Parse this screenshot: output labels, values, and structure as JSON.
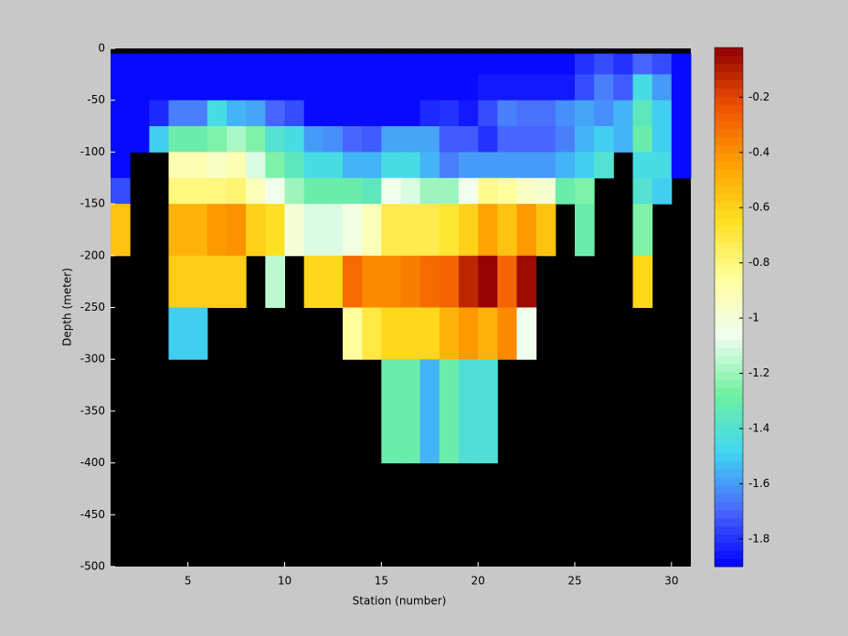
{
  "chart_data": {
    "type": "heatmap",
    "xlabel": "Station (number)",
    "ylabel": "Depth (meter)",
    "x_edges": [
      1,
      2,
      3,
      4,
      5,
      6,
      7,
      8,
      9,
      10,
      11,
      12,
      13,
      14,
      15,
      16,
      17,
      18,
      19,
      20,
      21,
      22,
      23,
      24,
      25,
      26,
      27,
      28,
      29,
      30,
      31
    ],
    "y_edges": [
      0,
      -5,
      -25,
      -50,
      -75,
      -100,
      -125,
      -150,
      -200,
      -250,
      -300,
      -400,
      -500
    ],
    "xlim": [
      1,
      31
    ],
    "ylim": [
      -500,
      0
    ],
    "xticks": [
      5,
      10,
      15,
      20,
      25,
      30
    ],
    "yticks": [
      0,
      -50,
      -100,
      -150,
      -200,
      -250,
      -300,
      -350,
      -400,
      -450,
      -500
    ],
    "background": "#000000",
    "clim": [
      -1.9,
      -0.02
    ],
    "cticks": [
      -1.8,
      -1.6,
      -1.4,
      -1.2,
      -1,
      -0.8,
      -0.6,
      -0.4,
      -0.2
    ],
    "colormap": [
      "#0000ff",
      "#4a6aff",
      "#40d8f0",
      "#70f0a0",
      "#f0fff0",
      "#ffffa0",
      "#ffe020",
      "#ffa000",
      "#f05000",
      "#900000"
    ],
    "colorbar_steps": 64,
    "values": [
      [
        null,
        null,
        null,
        null,
        null,
        null,
        null,
        null,
        null,
        null,
        null,
        null,
        null,
        null,
        null,
        null,
        null,
        null,
        null,
        null,
        null,
        null,
        null,
        null,
        null,
        null,
        null,
        null,
        null,
        null
      ],
      [
        -1.88,
        -1.88,
        -1.88,
        -1.88,
        -1.88,
        -1.88,
        -1.88,
        -1.88,
        -1.88,
        -1.88,
        -1.88,
        -1.88,
        -1.88,
        -1.88,
        -1.88,
        -1.88,
        -1.88,
        -1.88,
        -1.88,
        -1.88,
        -1.88,
        -1.88,
        -1.88,
        -1.88,
        -1.8,
        -1.75,
        -1.8,
        -1.7,
        -1.75,
        -1.88
      ],
      [
        -1.88,
        -1.88,
        -1.88,
        -1.88,
        -1.88,
        -1.88,
        -1.88,
        -1.88,
        -1.88,
        -1.88,
        -1.88,
        -1.88,
        -1.88,
        -1.88,
        -1.88,
        -1.88,
        -1.88,
        -1.88,
        -1.88,
        -1.85,
        -1.85,
        -1.85,
        -1.85,
        -1.85,
        -1.75,
        -1.65,
        -1.72,
        -1.45,
        -1.6,
        -1.88
      ],
      [
        -1.88,
        -1.88,
        -1.82,
        -1.65,
        -1.65,
        -1.45,
        -1.55,
        -1.58,
        -1.7,
        -1.75,
        -1.88,
        -1.88,
        -1.88,
        -1.88,
        -1.88,
        -1.88,
        -1.82,
        -1.8,
        -1.85,
        -1.75,
        -1.65,
        -1.68,
        -1.68,
        -1.62,
        -1.58,
        -1.62,
        -1.55,
        -1.35,
        -1.5,
        -1.88
      ],
      [
        -1.88,
        -1.88,
        -1.5,
        -1.3,
        -1.3,
        -1.25,
        -1.18,
        -1.25,
        -1.4,
        -1.45,
        -1.6,
        -1.62,
        -1.7,
        -1.72,
        -1.58,
        -1.58,
        -1.58,
        -1.72,
        -1.72,
        -1.8,
        -1.7,
        -1.7,
        -1.7,
        -1.65,
        -1.55,
        -1.5,
        -1.55,
        -1.3,
        -1.5,
        -1.88
      ],
      [
        -1.88,
        null,
        null,
        -0.9,
        -0.9,
        -0.95,
        -0.9,
        -1.1,
        -1.25,
        -1.35,
        -1.45,
        -1.45,
        -1.55,
        -1.55,
        -1.45,
        -1.45,
        -1.55,
        -1.65,
        -1.6,
        -1.6,
        -1.6,
        -1.6,
        -1.6,
        -1.55,
        -1.5,
        -1.4,
        null,
        -1.45,
        -1.45,
        -1.88
      ],
      [
        -1.75,
        null,
        null,
        -0.8,
        -0.8,
        -0.8,
        -0.78,
        -0.92,
        -1.05,
        -1.2,
        -1.3,
        -1.3,
        -1.3,
        -1.35,
        -1.05,
        -1.1,
        -1.2,
        -1.2,
        -1.05,
        -0.82,
        -0.85,
        -0.95,
        -0.98,
        -1.3,
        -1.25,
        null,
        null,
        -1.4,
        -1.5,
        null
      ],
      [
        -0.55,
        null,
        null,
        -0.5,
        -0.5,
        -0.42,
        -0.4,
        -0.6,
        -0.65,
        -1,
        -1.1,
        -1.1,
        -1.02,
        -0.92,
        -0.72,
        -0.72,
        -0.72,
        -0.68,
        -0.6,
        -0.45,
        -0.55,
        -0.42,
        -0.55,
        null,
        -1.3,
        null,
        null,
        -1.25,
        null,
        null
      ],
      [
        null,
        null,
        null,
        -0.58,
        -0.58,
        -0.58,
        -0.58,
        null,
        -1.15,
        null,
        -0.62,
        -0.62,
        -0.3,
        -0.38,
        -0.38,
        -0.35,
        -0.3,
        -0.28,
        -0.12,
        -0.03,
        -0.28,
        -0.05,
        null,
        null,
        null,
        null,
        null,
        -0.62,
        null,
        null
      ],
      [
        null,
        null,
        null,
        -1.5,
        -1.5,
        null,
        null,
        null,
        null,
        null,
        null,
        null,
        -0.85,
        -0.7,
        -0.62,
        -0.62,
        -0.62,
        -0.5,
        -0.42,
        -0.5,
        -0.38,
        -1.05,
        null,
        null,
        null,
        null,
        null,
        null,
        null,
        null
      ],
      [
        null,
        null,
        null,
        null,
        null,
        null,
        null,
        null,
        null,
        null,
        null,
        null,
        null,
        null,
        -1.3,
        -1.3,
        -1.55,
        -1.3,
        -1.42,
        -1.42,
        null,
        null,
        null,
        null,
        null,
        null,
        null,
        null,
        null,
        null
      ],
      [
        null,
        null,
        null,
        null,
        null,
        null,
        null,
        null,
        null,
        null,
        null,
        null,
        null,
        null,
        null,
        null,
        null,
        null,
        null,
        null,
        null,
        null,
        null,
        null,
        null,
        null,
        null,
        null,
        null,
        null
      ]
    ]
  }
}
